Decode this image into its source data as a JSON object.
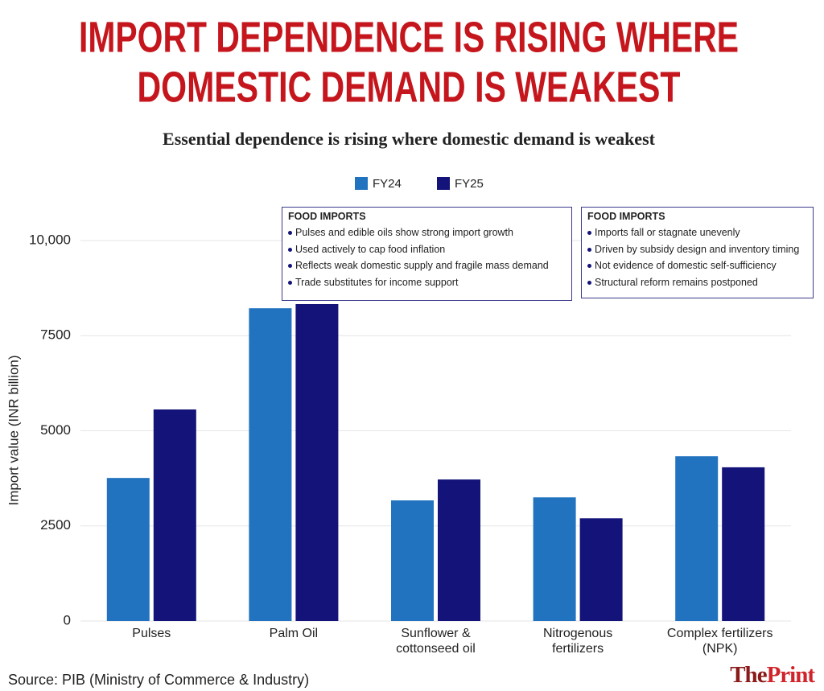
{
  "chart_data": {
    "type": "bar",
    "title": [
      "IMPORT DEPENDENCE IS RISING WHERE",
      "DOMESTIC DEMAND IS WEAKEST"
    ],
    "subtitle": "Essential dependence is rising where domestic demand is weakest",
    "y_label": "Import value (INR billion)",
    "categories": [
      "Pulses",
      "Palm Oil",
      "Sunflower & cottonseed oil",
      "Nitrogenous fertilizers",
      "Complex fertilizers (NPK)"
    ],
    "series": [
      {
        "name": "FY24",
        "color": "#2273bf",
        "values": [
          3760,
          8220,
          3170,
          3250,
          4330
        ]
      },
      {
        "name": "FY25",
        "color": "#13137a",
        "values": [
          5560,
          8330,
          3720,
          2700,
          4040
        ]
      }
    ],
    "ylim": [
      0,
      10000
    ],
    "yticks": [
      0,
      2500,
      5000,
      7500,
      {
        "value": 10000,
        "label": "10,000"
      }
    ],
    "grid": true,
    "annotations": [
      {
        "title": "FOOD IMPORTS",
        "items": [
          "Pulses and edible oils show strong import growth",
          "Used actively to cap food inflation",
          "Reflects weak domestic supply and fragile mass demand",
          "Trade substitutes for income support"
        ]
      },
      {
        "title": "FOOD IMPORTS",
        "items": [
          "Imports fall or stagnate unevenly",
          "Driven by subsidy design and inventory timing",
          "Not evidence of domestic self-sufficiency",
          "Structural reform remains postponed"
        ]
      }
    ],
    "source": "Source: PIB (Ministry of Commerce & Industry)",
    "logo": {
      "the": "The",
      "print": "Print"
    }
  }
}
